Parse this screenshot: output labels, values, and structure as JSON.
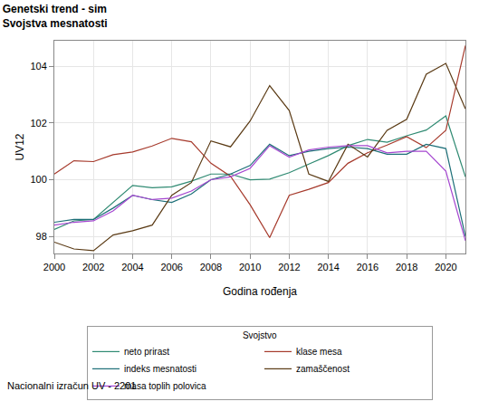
{
  "chart_data": {
    "type": "line",
    "title": "Genetski trend - sim",
    "subtitle": "Svojstva mesnatosti",
    "x_label": "Godina rođenja",
    "y_label": "UV12",
    "legend_title": "Svojstvo",
    "annotations": [
      "Nacionalni izračun UV - 2201"
    ],
    "x": [
      2000,
      2001,
      2002,
      2003,
      2004,
      2005,
      2006,
      2007,
      2008,
      2009,
      2010,
      2011,
      2012,
      2013,
      2014,
      2015,
      2016,
      2017,
      2018,
      2019,
      2020,
      2021
    ],
    "series": [
      {
        "name": "neto prirast",
        "color": "#2f8a72",
        "values": [
          98.25,
          98.55,
          98.6,
          99.2,
          99.8,
          99.72,
          99.75,
          99.95,
          100.2,
          100.2,
          100.0,
          100.02,
          100.25,
          100.55,
          100.85,
          101.2,
          101.42,
          101.32,
          101.55,
          101.75,
          102.25,
          100.1
        ]
      },
      {
        "name": "klase mesa",
        "color": "#a63a2c",
        "values": [
          100.2,
          100.67,
          100.64,
          100.88,
          100.98,
          101.19,
          101.46,
          101.34,
          100.58,
          100.12,
          99.12,
          97.96,
          99.45,
          99.66,
          99.9,
          100.58,
          100.95,
          101.22,
          101.52,
          101.13,
          101.74,
          104.73
        ]
      },
      {
        "name": "indeks mesnatosti",
        "color": "#1d6f78",
        "values": [
          98.5,
          98.6,
          98.6,
          99.0,
          99.45,
          99.3,
          99.2,
          99.5,
          100.0,
          100.2,
          100.5,
          101.25,
          100.85,
          101.0,
          101.1,
          101.15,
          101.1,
          100.9,
          100.9,
          101.25,
          101.1,
          98.0
        ]
      },
      {
        "name": "zamaščenost",
        "color": "#5a3a14",
        "values": [
          97.8,
          97.56,
          97.5,
          98.05,
          98.2,
          98.4,
          99.45,
          99.9,
          101.37,
          101.16,
          102.07,
          103.32,
          102.44,
          100.2,
          99.94,
          101.25,
          100.8,
          101.74,
          102.13,
          103.72,
          104.1,
          102.5
        ]
      },
      {
        "name": "masa toplih polovica",
        "color": "#a547d0",
        "values": [
          98.4,
          98.5,
          98.55,
          98.9,
          99.45,
          99.3,
          99.35,
          99.6,
          100.0,
          100.1,
          100.4,
          101.2,
          100.8,
          101.05,
          101.15,
          101.2,
          101.2,
          100.95,
          101.0,
          101.0,
          100.3,
          97.85
        ]
      }
    ],
    "xlim": [
      2000,
      2021
    ],
    "xticks": [
      2000,
      2002,
      2004,
      2006,
      2008,
      2010,
      2012,
      2014,
      2016,
      2018,
      2020
    ],
    "ylim": [
      97.4,
      104.9
    ],
    "yticks": [
      98,
      100,
      102,
      104
    ],
    "grid": true,
    "legend": "bottom",
    "marker": "none",
    "line_style": "solid"
  }
}
